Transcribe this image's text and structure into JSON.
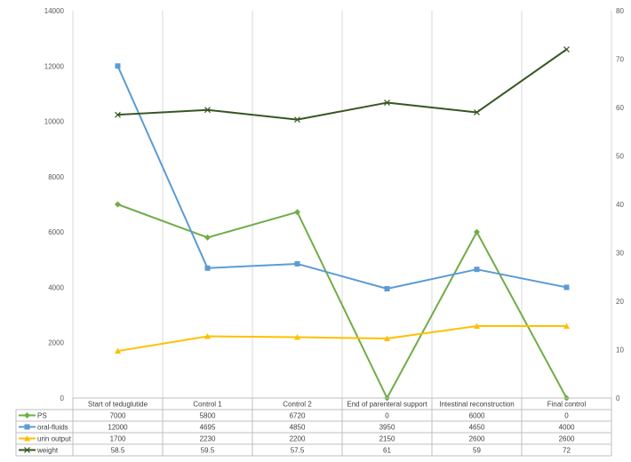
{
  "chart_data": {
    "type": "line",
    "categories": [
      "Start of teduglutide",
      "Control 1",
      "Control 2",
      "End of parenteral support",
      "Intestinal reconstruction",
      "Final control"
    ],
    "left_axis": {
      "min": 0,
      "max": 14000,
      "ticks": [
        "0",
        "2000",
        "4000",
        "6000",
        "8000",
        "10000",
        "12000",
        "14000"
      ]
    },
    "right_axis": {
      "min": 0,
      "max": 80,
      "ticks": [
        "0",
        "10",
        "20",
        "30",
        "40",
        "50",
        "60",
        "70",
        "80"
      ]
    },
    "gridlines": "vertical",
    "data_table": true,
    "series": [
      {
        "name": "PS",
        "axis": "left",
        "color": "#70AD47",
        "marker": "diamond",
        "values": [
          7000,
          5800,
          6720,
          0,
          6000,
          0
        ],
        "labels": [
          "7000",
          "5800",
          "6720",
          "0",
          "6000",
          "0"
        ]
      },
      {
        "name": "oral-fluids",
        "axis": "left",
        "color": "#5B9BD5",
        "marker": "square",
        "values": [
          12000,
          4695,
          4850,
          3950,
          4650,
          4000
        ],
        "labels": [
          "12000",
          "4695",
          "4850",
          "3950",
          "4650",
          "4000"
        ]
      },
      {
        "name": "urin output",
        "axis": "left",
        "color": "#FFC000",
        "marker": "triangle",
        "values": [
          1700,
          2230,
          2200,
          2150,
          2600,
          2600
        ],
        "labels": [
          "1700",
          "2230",
          "2200",
          "2150",
          "2600",
          "2600"
        ]
      },
      {
        "name": "weight",
        "axis": "right",
        "color": "#375623",
        "marker": "x",
        "values": [
          58.5,
          59.5,
          57.5,
          61,
          59,
          72
        ],
        "labels": [
          "58.5",
          "59.5",
          "57.5",
          "61",
          "59",
          "72"
        ]
      }
    ]
  }
}
